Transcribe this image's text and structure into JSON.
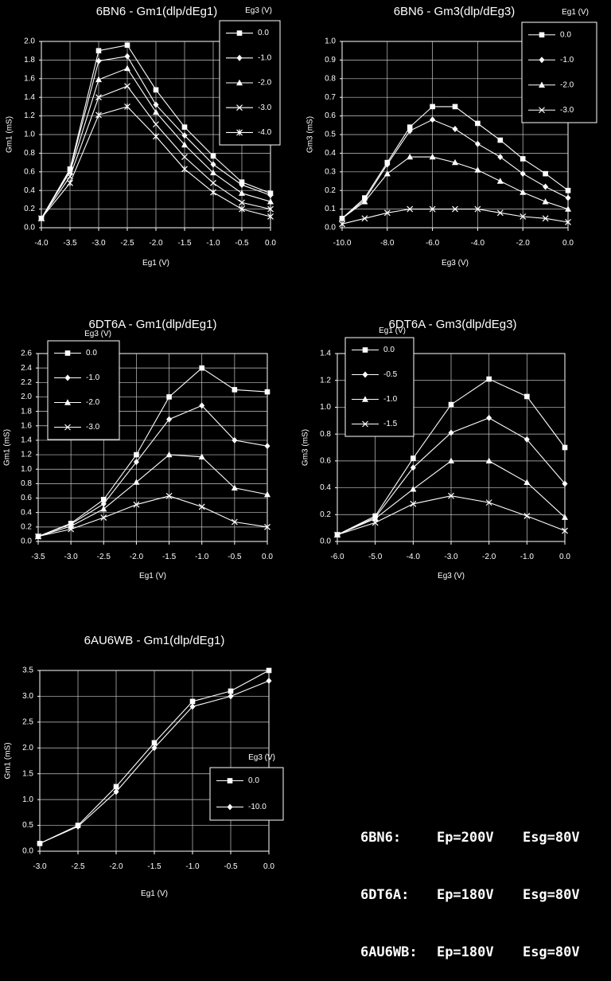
{
  "chart_data": [
    {
      "type": "line",
      "title": "6BN6 - Gm1(dlp/dEg1)",
      "xlabel": "Eg1 (V)",
      "ylabel": "Gm1 (mS)",
      "xlim": [
        -4.0,
        0.0
      ],
      "ylim": [
        0.0,
        2.0
      ],
      "xticks": [
        "-4.0",
        "-3.5",
        "-3.0",
        "-2.5",
        "-2.0",
        "-1.5",
        "-1.0",
        "-0.5",
        "0.0"
      ],
      "yticks": [
        "0.0",
        "0.2",
        "0.4",
        "0.6",
        "0.8",
        "1.0",
        "1.2",
        "1.4",
        "1.6",
        "1.8",
        "2.0"
      ],
      "legend_title": "Eg3 (V)",
      "legend_position": "top-right",
      "grid": true,
      "x": [
        -4.0,
        -3.5,
        -3.0,
        -2.5,
        -2.0,
        -1.5,
        -1.0,
        -0.5,
        0.0
      ],
      "series": [
        {
          "name": "0.0",
          "marker": "square",
          "values": [
            0.1,
            0.63,
            1.9,
            1.96,
            1.48,
            1.08,
            0.77,
            0.49,
            0.37
          ]
        },
        {
          "name": "-1.0",
          "marker": "diamond",
          "values": [
            0.1,
            0.62,
            1.79,
            1.84,
            1.32,
            0.99,
            0.68,
            0.46,
            0.35
          ]
        },
        {
          "name": "-2.0",
          "marker": "triangle",
          "values": [
            0.1,
            0.6,
            1.59,
            1.71,
            1.24,
            0.89,
            0.59,
            0.37,
            0.28
          ]
        },
        {
          "name": "-3.0",
          "marker": "x",
          "values": [
            0.1,
            0.55,
            1.4,
            1.52,
            1.11,
            0.76,
            0.48,
            0.27,
            0.2
          ]
        },
        {
          "name": "-4.0",
          "marker": "star",
          "values": [
            0.1,
            0.48,
            1.21,
            1.3,
            0.98,
            0.63,
            0.38,
            0.2,
            0.12
          ]
        }
      ]
    },
    {
      "type": "line",
      "title": "6BN6 - Gm3(dlp/dEg3)",
      "xlabel": "Eg3 (V)",
      "ylabel": "Gm3 (mS)",
      "xlim": [
        -10.0,
        0.0
      ],
      "ylim": [
        0.0,
        1.0
      ],
      "xticks": [
        "-10.0",
        "-8.0",
        "-6.0",
        "-4.0",
        "-2.0",
        "0.0"
      ],
      "yticks": [
        "0.0",
        "0.1",
        "0.2",
        "0.3",
        "0.4",
        "0.5",
        "0.6",
        "0.7",
        "0.8",
        "0.9",
        "1.0"
      ],
      "legend_title": "Eg1 (V)",
      "legend_position": "top-right",
      "grid": true,
      "x": [
        -10,
        -9,
        -8,
        -7,
        -6,
        -5,
        -4,
        -3,
        -2,
        -1,
        0
      ],
      "series": [
        {
          "name": "0.0",
          "marker": "square",
          "values": [
            0.05,
            0.16,
            0.35,
            0.54,
            0.65,
            0.65,
            0.56,
            0.47,
            0.37,
            0.29,
            0.2
          ]
        },
        {
          "name": "-1.0",
          "marker": "diamond",
          "values": [
            0.05,
            0.15,
            0.34,
            0.52,
            0.58,
            0.53,
            0.45,
            0.38,
            0.29,
            0.22,
            0.16
          ]
        },
        {
          "name": "-2.0",
          "marker": "triangle",
          "values": [
            0.05,
            0.14,
            0.29,
            0.38,
            0.38,
            0.35,
            0.31,
            0.25,
            0.19,
            0.14,
            0.1
          ]
        },
        {
          "name": "-3.0",
          "marker": "x",
          "values": [
            0.02,
            0.05,
            0.08,
            0.1,
            0.1,
            0.1,
            0.1,
            0.08,
            0.06,
            0.05,
            0.03
          ]
        }
      ]
    },
    {
      "type": "line",
      "title": "6DT6A - Gm1(dlp/dEg1)",
      "xlabel": "Eg1 (V)",
      "ylabel": "Gm1 (mS)",
      "xlim": [
        -3.5,
        0.0
      ],
      "ylim": [
        0.0,
        2.6
      ],
      "xticks": [
        "-3.5",
        "-3.0",
        "-2.5",
        "-2.0",
        "-1.5",
        "-1.0",
        "-0.5",
        "0.0"
      ],
      "yticks": [
        "0.0",
        "0.2",
        "0.4",
        "0.6",
        "0.8",
        "1.0",
        "1.2",
        "1.4",
        "1.6",
        "1.8",
        "2.0",
        "2.2",
        "2.4",
        "2.6"
      ],
      "legend_title": "Eg3 (V)",
      "legend_position": "top-left",
      "grid": true,
      "x": [
        -3.5,
        -3.0,
        -2.5,
        -2.0,
        -1.5,
        -1.0,
        -0.5,
        0.0
      ],
      "series": [
        {
          "name": "0.0",
          "marker": "square",
          "values": [
            0.07,
            0.25,
            0.58,
            1.2,
            2.0,
            2.4,
            2.1,
            2.07
          ]
        },
        {
          "name": "-1.0",
          "marker": "diamond",
          "values": [
            0.07,
            0.24,
            0.52,
            1.1,
            1.69,
            1.88,
            1.4,
            1.32
          ]
        },
        {
          "name": "-2.0",
          "marker": "triangle",
          "values": [
            0.07,
            0.21,
            0.45,
            0.82,
            1.2,
            1.17,
            0.74,
            0.65
          ]
        },
        {
          "name": "-3.0",
          "marker": "x",
          "values": [
            0.07,
            0.17,
            0.33,
            0.51,
            0.63,
            0.48,
            0.27,
            0.2
          ]
        }
      ]
    },
    {
      "type": "line",
      "title": "6DT6A - Gm3(dlp/dEg3)",
      "xlabel": "Eg3 (V)",
      "ylabel": "Gm3 (mS)",
      "xlim": [
        -6.0,
        0.0
      ],
      "ylim": [
        0.0,
        1.4
      ],
      "xticks": [
        "-6.0",
        "-5.0",
        "-4.0",
        "-3.0",
        "-2.0",
        "-1.0",
        "0.0"
      ],
      "yticks": [
        "0.0",
        "0.2",
        "0.4",
        "0.6",
        "0.8",
        "1.0",
        "1.2",
        "1.4"
      ],
      "legend_title": "Eg1 (V)",
      "legend_position": "top-left",
      "grid": true,
      "x": [
        -6,
        -5,
        -4,
        -3,
        -2,
        -1,
        0
      ],
      "series": [
        {
          "name": "0.0",
          "marker": "square",
          "values": [
            0.05,
            0.19,
            0.62,
            1.02,
            1.21,
            1.08,
            0.7
          ]
        },
        {
          "name": "-0.5",
          "marker": "diamond",
          "values": [
            0.05,
            0.18,
            0.55,
            0.81,
            0.92,
            0.76,
            0.43
          ]
        },
        {
          "name": "-1.0",
          "marker": "triangle",
          "values": [
            0.05,
            0.17,
            0.39,
            0.6,
            0.6,
            0.44,
            0.18
          ]
        },
        {
          "name": "-1.5",
          "marker": "x",
          "values": [
            0.05,
            0.14,
            0.28,
            0.34,
            0.29,
            0.19,
            0.08
          ]
        }
      ]
    },
    {
      "type": "line",
      "title": "6AU6WB - Gm1(dlp/dEg1)",
      "xlabel": "Eg1 (V)",
      "ylabel": "Gm1 (mS)",
      "xlim": [
        -3.0,
        0.0
      ],
      "ylim": [
        0.0,
        3.5
      ],
      "xticks": [
        "-3.0",
        "-2.5",
        "-2.0",
        "-1.5",
        "-1.0",
        "-0.5",
        "0.0"
      ],
      "yticks": [
        "0.0",
        "0.5",
        "1.0",
        "1.5",
        "2.0",
        "2.5",
        "3.0",
        "3.5"
      ],
      "legend_title": "Eg3 (V)",
      "legend_position": "bottom-right",
      "grid": true,
      "x": [
        -3.0,
        -2.5,
        -2.0,
        -1.5,
        -1.0,
        -0.5,
        0.0
      ],
      "series": [
        {
          "name": "0.0",
          "marker": "square",
          "values": [
            0.15,
            0.5,
            1.25,
            2.1,
            2.9,
            3.1,
            3.5
          ]
        },
        {
          "name": "-10.0",
          "marker": "diamond",
          "values": [
            0.15,
            0.48,
            1.15,
            2.0,
            2.8,
            3.0,
            3.3
          ]
        }
      ]
    }
  ],
  "conditions": [
    {
      "tube": "6BN6:",
      "ep": "Ep=200V",
      "esg": "Esg=80V"
    },
    {
      "tube": "6DT6A:",
      "ep": "Ep=180V",
      "esg": "Esg=80V"
    },
    {
      "tube": "6AU6WB:",
      "ep": "Ep=180V",
      "esg": "Esg=80V"
    }
  ]
}
